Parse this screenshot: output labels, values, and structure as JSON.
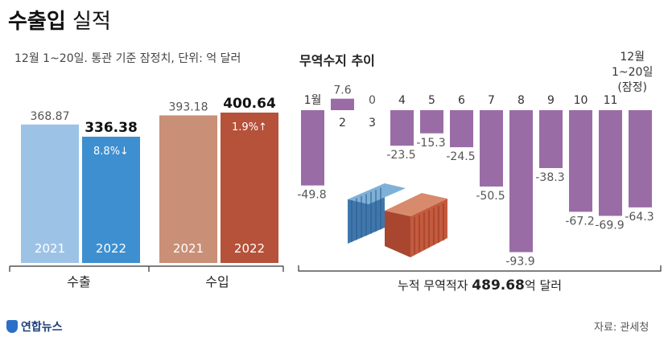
{
  "title_bold": "수출입",
  "title_light": " 실적",
  "subtitle": "12월 1~20일. 통관 기준 잠정치, 단위: 억 달러",
  "trend_title": "무역수지 추이",
  "period_note_lines": [
    "12월",
    "1~20일",
    "(잠정)"
  ],
  "source": "자료: 관세청",
  "logo_text": "연합뉴스",
  "colors": {
    "export_2021": "#9cc3e6",
    "export_2022": "#3d8fd0",
    "import_2021": "#c98f77",
    "import_2022": "#b6513a",
    "balance": "#9a6ca6"
  },
  "chart_data": [
    {
      "type": "bar",
      "groups": [
        {
          "label": "수출",
          "bars": [
            {
              "year": "2021",
              "value": 368.87,
              "value_label": "368.87"
            },
            {
              "year": "2022",
              "value": 336.38,
              "value_label": "336.38",
              "change": "8.8%↓"
            }
          ]
        },
        {
          "label": "수입",
          "bars": [
            {
              "year": "2021",
              "value": 393.18,
              "value_label": "393.18"
            },
            {
              "year": "2022",
              "value": 400.64,
              "value_label": "400.64",
              "change": "1.9%↑"
            }
          ]
        }
      ]
    },
    {
      "type": "bar",
      "title": "무역수지 추이",
      "categories": [
        "1월",
        "2",
        "3",
        "4",
        "5",
        "6",
        "7",
        "8",
        "9",
        "10",
        "11",
        "12월 1~20일 (잠정)"
      ],
      "category_labels": [
        "1월",
        "2",
        "3",
        "4",
        "5",
        "6",
        "7",
        "8",
        "9",
        "10",
        "11",
        ""
      ],
      "values": [
        -49.8,
        7.6,
        0,
        -23.5,
        -15.3,
        -24.5,
        -50.5,
        -93.9,
        -38.3,
        -67.2,
        -69.9,
        -64.3
      ],
      "value_labels": [
        "-49.8",
        "7.6",
        "0",
        "-23.5",
        "-15.3",
        "-24.5",
        "-50.5",
        "-93.9",
        "-38.3",
        "-67.2",
        "-69.9",
        "-64.3"
      ],
      "annotation": {
        "prefix": "누적 무역적자 ",
        "value": "489.68",
        "suffix": "억 달러"
      }
    }
  ]
}
